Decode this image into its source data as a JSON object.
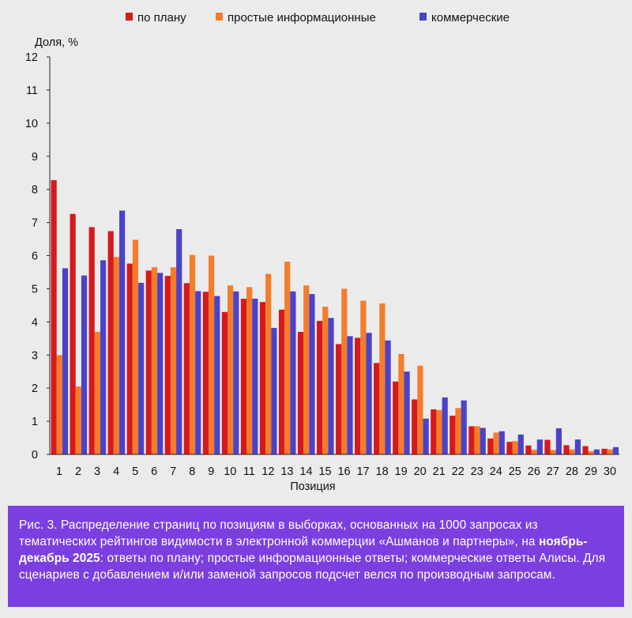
{
  "chart_data": {
    "type": "bar",
    "title": "",
    "ylabel": "Доля, %",
    "xlabel": "Позиция",
    "ylim": [
      0,
      12
    ],
    "yticks": [
      0,
      1,
      2,
      3,
      4,
      5,
      6,
      7,
      8,
      9,
      10,
      11,
      12
    ],
    "legend_position": "top",
    "grid": false,
    "categories": [
      "1",
      "2",
      "3",
      "4",
      "5",
      "6",
      "7",
      "8",
      "9",
      "10",
      "11",
      "12",
      "13",
      "14",
      "15",
      "16",
      "17",
      "18",
      "19",
      "20",
      "21",
      "22",
      "23",
      "24",
      "25",
      "26",
      "27",
      "28",
      "29",
      "30"
    ],
    "series": [
      {
        "name": "по плану",
        "color": "#d7191c",
        "values": [
          8.28,
          7.26,
          6.86,
          6.74,
          5.76,
          5.55,
          5.39,
          5.17,
          4.91,
          4.3,
          4.7,
          4.6,
          4.37,
          3.7,
          4.03,
          3.33,
          3.52,
          2.76,
          2.2,
          1.66,
          1.36,
          1.17,
          0.85,
          0.48,
          0.38,
          0.27,
          0.44,
          0.28,
          0.25,
          0.17
        ]
      },
      {
        "name": "простые информационные",
        "color": "#f57c29",
        "values": [
          3.0,
          2.05,
          3.7,
          5.96,
          6.48,
          5.65,
          5.65,
          6.02,
          6.0,
          5.1,
          5.05,
          5.45,
          5.82,
          5.1,
          4.46,
          5.0,
          4.64,
          4.56,
          3.03,
          2.68,
          1.34,
          1.4,
          0.85,
          0.66,
          0.4,
          0.14,
          0.13,
          0.15,
          0.1,
          0.15
        ]
      },
      {
        "name": "коммерческие",
        "color": "#4a43c9",
        "values": [
          5.62,
          5.4,
          5.86,
          7.36,
          5.18,
          5.48,
          6.8,
          4.93,
          4.78,
          4.92,
          4.7,
          3.82,
          4.92,
          4.84,
          4.12,
          3.57,
          3.67,
          3.44,
          2.5,
          1.08,
          1.72,
          1.63,
          0.8,
          0.7,
          0.6,
          0.45,
          0.79,
          0.45,
          0.15,
          0.22
        ]
      }
    ]
  },
  "caption": {
    "label": "Рис. 3.",
    "text_before": "Распределение страниц по позициям в выборках, основанных на 1000 запросах из тематических рейтингов видимости в электронной коммерции «Ашманов и партнеры», на",
    "highlight": "ноябрь-декабрь 2025",
    "text_after": ": ответы по плану; простые информационные ответы; коммерческие ответы Алисы. Для сценариев с добавлением и/или заменой запросов подсчет велся по производным запросам."
  }
}
